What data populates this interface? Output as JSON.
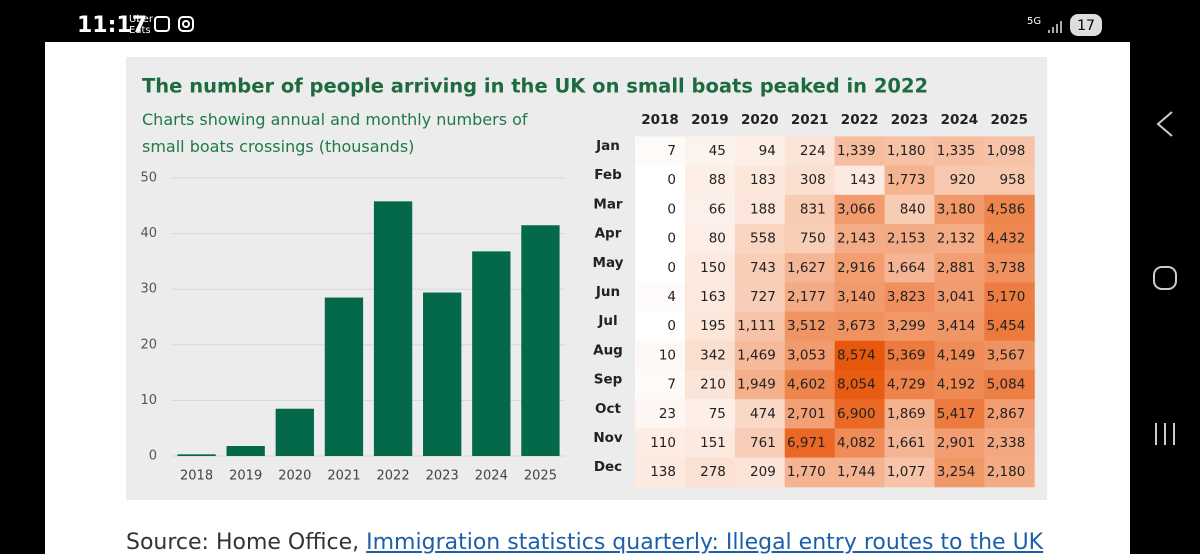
{
  "status_bar": {
    "time": "11:17",
    "app_lines": [
      "Uber",
      "Eats"
    ],
    "network": "5G",
    "battery": "17"
  },
  "chart_data": {
    "type": "bar",
    "title": "The number of people arriving in the UK on small boats peaked in 2022",
    "subtitle": "Charts showing annual and monthly numbers of small boats crossings (thousands)",
    "categories": [
      "2018",
      "2019",
      "2020",
      "2021",
      "2022",
      "2023",
      "2024",
      "2025"
    ],
    "values": [
      0.3,
      1.8,
      8.5,
      28.5,
      45.8,
      29.4,
      36.8,
      41.5
    ],
    "color": "#03694a",
    "ylim": [
      0,
      50
    ],
    "yticks": [
      0,
      10,
      20,
      30,
      40,
      50
    ]
  },
  "table": {
    "header": [
      "2018",
      "2019",
      "2020",
      "2021",
      "2022",
      "2023",
      "2024",
      "2025"
    ],
    "rows": [
      [
        "Jan",
        "7",
        "45",
        "94",
        "224",
        "1,339",
        "1,180",
        "1,335",
        "1,098"
      ],
      [
        "Feb",
        "0",
        "88",
        "183",
        "308",
        "143",
        "1,773",
        "920",
        "958"
      ],
      [
        "Mar",
        "0",
        "66",
        "188",
        "831",
        "3,066",
        "840",
        "3,180",
        "4,586"
      ],
      [
        "Apr",
        "0",
        "80",
        "558",
        "750",
        "2,143",
        "2,153",
        "2,132",
        "4,432"
      ],
      [
        "May",
        "0",
        "150",
        "743",
        "1,627",
        "2,916",
        "1,664",
        "2,881",
        "3,738"
      ],
      [
        "Jun",
        "4",
        "163",
        "727",
        "2,177",
        "3,140",
        "3,823",
        "3,041",
        "5,170"
      ],
      [
        "Jul",
        "0",
        "195",
        "1,111",
        "3,512",
        "3,673",
        "3,299",
        "3,414",
        "5,454"
      ],
      [
        "Aug",
        "10",
        "342",
        "1,469",
        "3,053",
        "8,574",
        "5,369",
        "4,149",
        "3,567"
      ],
      [
        "Sep",
        "7",
        "210",
        "1,949",
        "4,602",
        "8,054",
        "4,729",
        "4,192",
        "5,084"
      ],
      [
        "Oct",
        "23",
        "75",
        "474",
        "2,701",
        "6,900",
        "1,869",
        "5,417",
        "2,867"
      ],
      [
        "Nov",
        "110",
        "151",
        "761",
        "6,971",
        "4,082",
        "1,661",
        "2,901",
        "2,338"
      ],
      [
        "Dec",
        "138",
        "278",
        "209",
        "1,770",
        "1,744",
        "1,077",
        "3,254",
        "2,180"
      ]
    ]
  },
  "source": {
    "prefix": "Source: Home Office, ",
    "link": "Immigration statistics quarterly: Illegal entry routes to the UK"
  }
}
